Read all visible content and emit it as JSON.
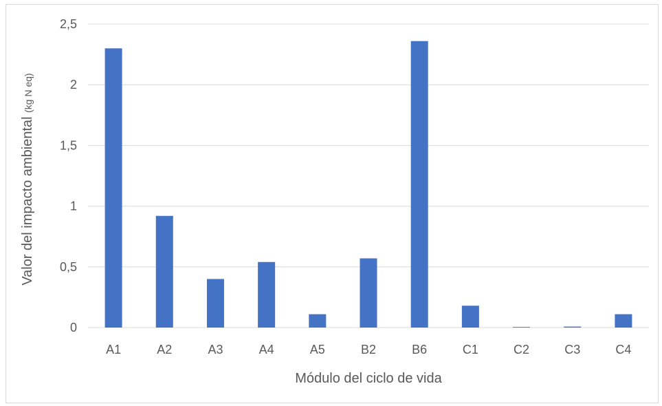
{
  "chart_data": {
    "type": "bar",
    "title": "",
    "categories": [
      "A1",
      "A2",
      "A3",
      "A4",
      "A5",
      "B2",
      "B6",
      "C1",
      "C2",
      "C3",
      "C4"
    ],
    "values": [
      2.3,
      0.92,
      0.4,
      0.54,
      0.11,
      0.57,
      2.36,
      0.18,
      0.005,
      0.008,
      0.11
    ],
    "xlabel": "Módulo del ciclo de vida",
    "ylabel_main": "Valor del impacto ambiental ",
    "ylabel_unit": "(kg N eq)",
    "ylim": [
      0,
      2.5
    ],
    "yticks": [
      0,
      0.5,
      1,
      1.5,
      2,
      2.5
    ],
    "ytick_labels": [
      "0",
      "0,5",
      "1",
      "1,5",
      "2",
      "2,5"
    ],
    "grid": true,
    "legend": "none",
    "bar_color": "#4472C4",
    "grid_color": "#d9d9d9"
  }
}
